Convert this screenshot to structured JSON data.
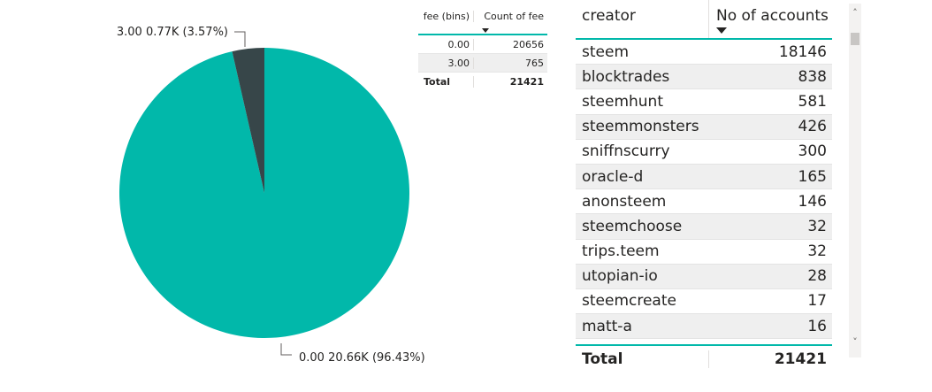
{
  "chart_data": {
    "type": "pie",
    "slices": [
      {
        "category": "0.00",
        "value": 20656,
        "label": "0.00 20.66K (96.43%)",
        "color": "#01b8aa"
      },
      {
        "category": "3.00",
        "value": 765,
        "label": "3.00 0.77K (3.57%)",
        "color": "#374649"
      }
    ]
  },
  "fee_table": {
    "headers": [
      "fee (bins)",
      "Count of fee"
    ],
    "rows": [
      {
        "bin": "0.00",
        "count": "20656"
      },
      {
        "bin": "3.00",
        "count": "765"
      }
    ],
    "total_label": "Total",
    "total_value": "21421"
  },
  "creator_table": {
    "headers": [
      "creator",
      "No of accounts"
    ],
    "rows": [
      {
        "creator": "steem",
        "count": "18146"
      },
      {
        "creator": "blocktrades",
        "count": "838"
      },
      {
        "creator": "steemhunt",
        "count": "581"
      },
      {
        "creator": "steemmonsters",
        "count": "426"
      },
      {
        "creator": "sniffnscurry",
        "count": "300"
      },
      {
        "creator": "oracle-d",
        "count": "165"
      },
      {
        "creator": "anonsteem",
        "count": "146"
      },
      {
        "creator": "steemchoose",
        "count": "32"
      },
      {
        "creator": "trips.teem",
        "count": "32"
      },
      {
        "creator": "utopian-io",
        "count": "28"
      },
      {
        "creator": "steemcreate",
        "count": "17"
      },
      {
        "creator": "matt-a",
        "count": "16"
      }
    ],
    "total_label": "Total",
    "total_value": "21421"
  },
  "scrollbar": {
    "up_icon": "chevron-up-icon",
    "down_icon": "chevron-down-icon"
  }
}
